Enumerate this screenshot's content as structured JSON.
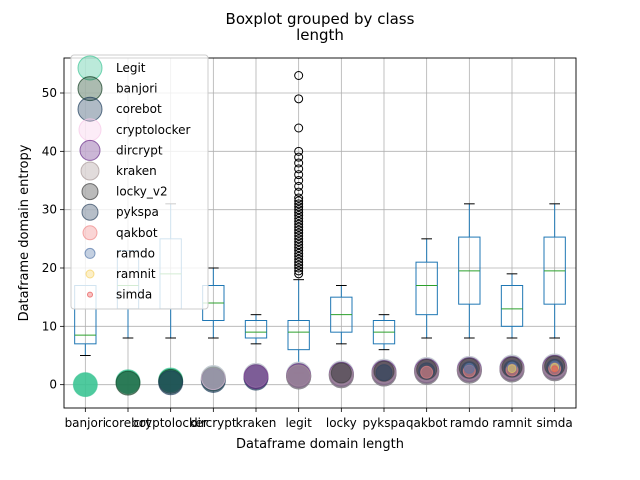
{
  "chart_data": {
    "type": "box",
    "suptitle": "Boxplot grouped by class",
    "title": "length",
    "xlabel": "Dataframe domain length",
    "ylabel": "Dataframe domain entropy",
    "ylim": [
      -4,
      56
    ],
    "yticks": [
      0,
      10,
      20,
      30,
      40,
      50
    ],
    "grid": true,
    "legend_position": "upper-left",
    "categories": [
      "banjori",
      "corebot",
      "cryptolocker",
      "dircrypt",
      "kraken",
      "legit",
      "locky",
      "pykspa",
      "qakbot",
      "ramdo",
      "ramnit",
      "simda"
    ],
    "boxes": [
      {
        "category": "banjori",
        "whislo": 5,
        "q1": 7,
        "med": 8.5,
        "q3": 17,
        "whishi": 17,
        "fliers": []
      },
      {
        "category": "corebot",
        "whislo": 8,
        "q1": 13,
        "med": 17,
        "q3": 23,
        "whishi": 23,
        "fliers": []
      },
      {
        "category": "cryptolocker",
        "whislo": 8,
        "q1": 13,
        "med": 19,
        "q3": 25,
        "whishi": 31,
        "fliers": []
      },
      {
        "category": "dircrypt",
        "whislo": 8,
        "q1": 11,
        "med": 14,
        "q3": 17,
        "whishi": 20,
        "fliers": []
      },
      {
        "category": "kraken",
        "whislo": 7,
        "q1": 8,
        "med": 9,
        "q3": 11,
        "whishi": 12,
        "fliers": []
      },
      {
        "category": "legit",
        "whislo": 2,
        "q1": 6,
        "med": 9,
        "q3": 11,
        "whishi": 18,
        "fliers": [
          19,
          19.5,
          20,
          20.5,
          21,
          21.5,
          22,
          22.5,
          23,
          23.5,
          24,
          24.5,
          25,
          25.5,
          26,
          26.5,
          27,
          27.5,
          28,
          28.5,
          29,
          29.5,
          30,
          30.5,
          31,
          31.5,
          32,
          33,
          34,
          35,
          36,
          37,
          38,
          39,
          40,
          44,
          49,
          53
        ]
      },
      {
        "category": "locky",
        "whislo": 7,
        "q1": 9,
        "med": 12,
        "q3": 15,
        "whishi": 17,
        "fliers": []
      },
      {
        "category": "pykspa",
        "whislo": 6,
        "q1": 7,
        "med": 9,
        "q3": 11,
        "whishi": 12,
        "fliers": []
      },
      {
        "category": "qakbot",
        "whislo": 8,
        "q1": 12,
        "med": 17,
        "q3": 21,
        "whishi": 25,
        "fliers": []
      },
      {
        "category": "ramdo",
        "whislo": 8,
        "q1": 13.8,
        "med": 19.5,
        "q3": 25.3,
        "whishi": 31,
        "fliers": []
      },
      {
        "category": "ramnit",
        "whislo": 8,
        "q1": 10,
        "med": 13,
        "q3": 17,
        "whishi": 19,
        "fliers": []
      },
      {
        "category": "simda",
        "whislo": 8,
        "q1": 13.8,
        "med": 19.5,
        "q3": 25.3,
        "whishi": 31,
        "fliers": []
      }
    ],
    "scatter_overlay": {
      "y": [
        0,
        0.5,
        0.8,
        1.2,
        1.6,
        1.8,
        2.0,
        2.3,
        2.6,
        2.8,
        3.0,
        3.2
      ]
    },
    "legend": [
      {
        "label": "Legit",
        "color": "#3cc494"
      },
      {
        "label": "banjori",
        "color": "#0e3b1e"
      },
      {
        "label": "corebot",
        "color": "#1b3a5a"
      },
      {
        "label": "cryptolocker",
        "color": "#f6c8e8"
      },
      {
        "label": "dircrypt",
        "color": "#6a2f8a"
      },
      {
        "label": "kraken",
        "color": "#a89898"
      },
      {
        "label": "locky_v2",
        "color": "#3a3a3a"
      },
      {
        "label": "pykspa",
        "color": "#2e4560"
      },
      {
        "label": "qakbot",
        "color": "#f08888"
      },
      {
        "label": "ramdo",
        "color": "#5577aa"
      },
      {
        "label": "ramnit",
        "color": "#f5d060"
      },
      {
        "label": "simda",
        "color": "#e85050"
      }
    ],
    "colors": {
      "box": "#1f77b4",
      "median": "#2ca02c",
      "grid": "#b0b0b0"
    }
  }
}
